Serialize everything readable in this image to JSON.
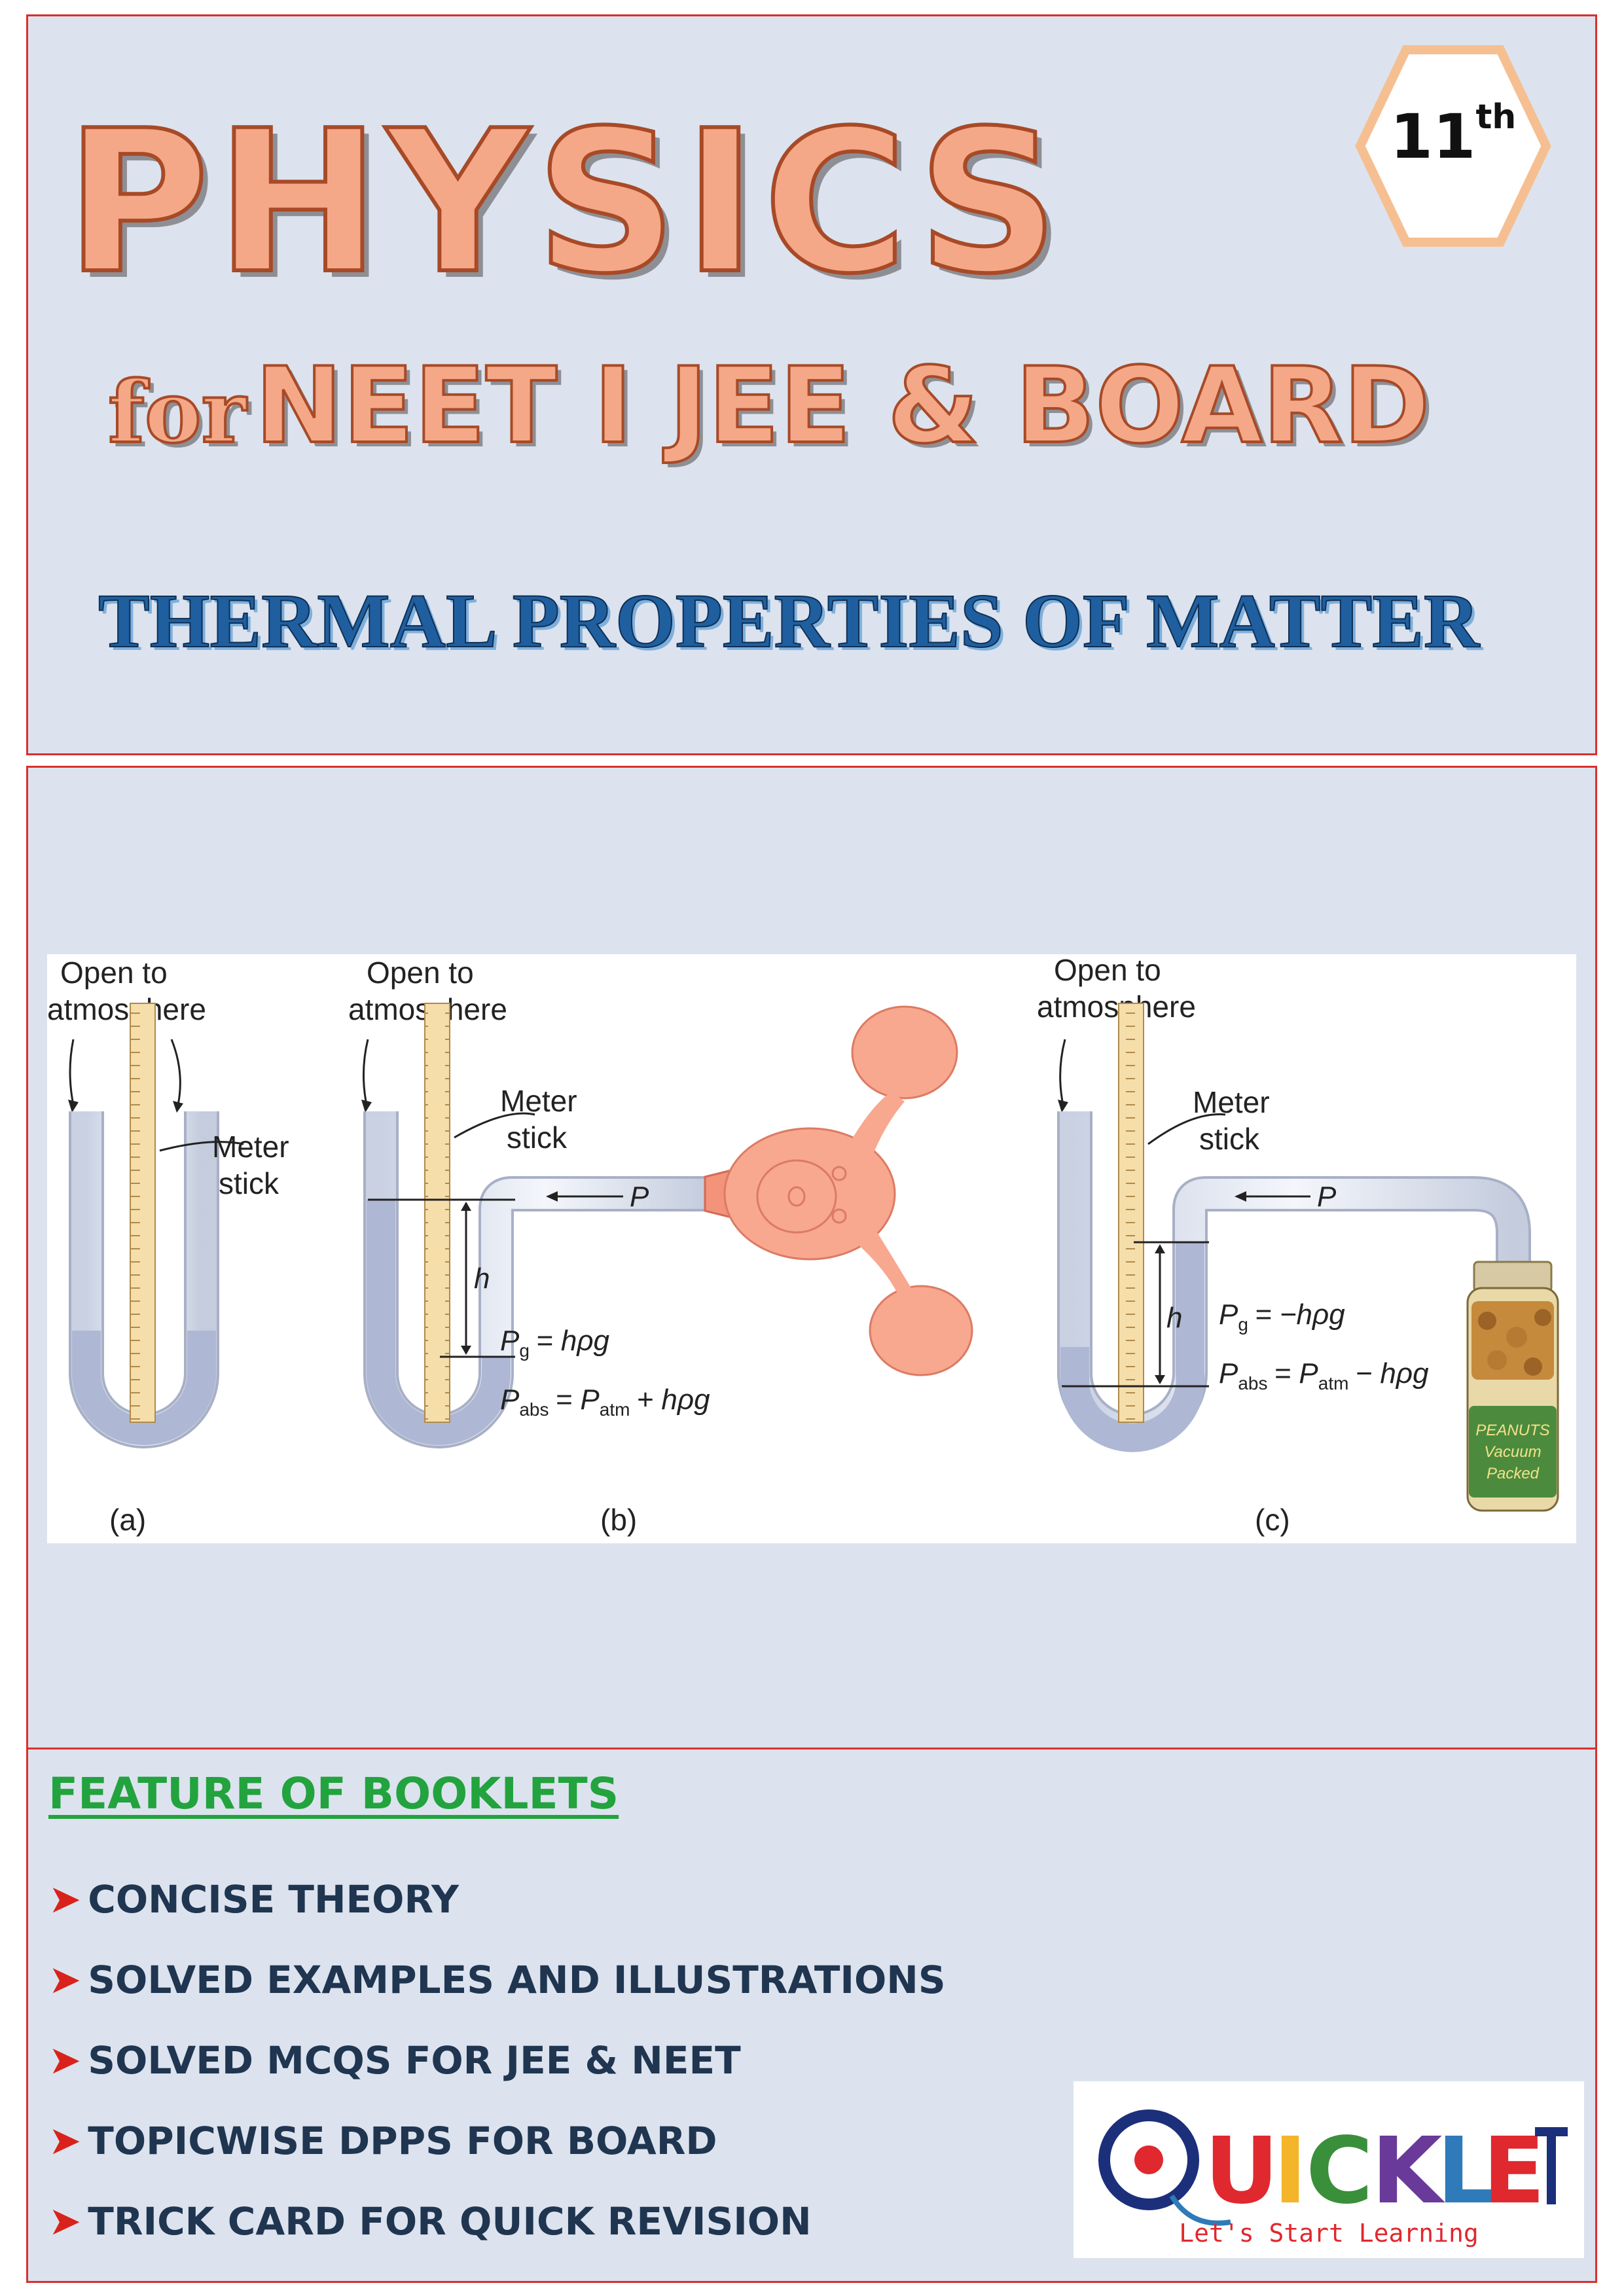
{
  "header": {
    "title": "PHYSICS",
    "subtitle_for": "for",
    "subtitle_rest": "NEET I JEE & BOARD",
    "chapter": "THERMAL PROPERTIES OF MATTER",
    "grade": "11",
    "grade_suffix": "th"
  },
  "figure": {
    "open_label_line1": "Open to",
    "open_label_line2": "atmosphere",
    "meter_label_line1": "Meter",
    "meter_label_line2": "stick",
    "h_label": "h",
    "p_label": "P",
    "eq_b1_lhs": "P",
    "eq_b1_sub": "g",
    "eq_b1_rhs": "= hρg",
    "eq_b2_lhs": "P",
    "eq_b2_sub": "abs",
    "eq_b2_mid": "= P",
    "eq_b2_sub2": "atm",
    "eq_b2_rhs": "+ hρg",
    "eq_c1_rhs": "= −hρg",
    "eq_c2_rhs": "− hρg",
    "jar_line1": "PEANUTS",
    "jar_line2": "Vacuum",
    "jar_line3": "Packed",
    "caption_a": "(a)",
    "caption_b": "(b)",
    "caption_c": "(c)"
  },
  "features": {
    "title": "FEATURE OF BOOKLETS",
    "items": [
      "CONCISE THEORY",
      "SOLVED EXAMPLES AND ILLUSTRATIONS",
      "SOLVED MCQS FOR JEE & NEET",
      "TOPICWISE DPPS FOR BOARD",
      "TRICK CARD FOR QUICK REVISION"
    ]
  },
  "logo": {
    "name": "QUICKLET",
    "tagline": "Let's Start Learning"
  }
}
